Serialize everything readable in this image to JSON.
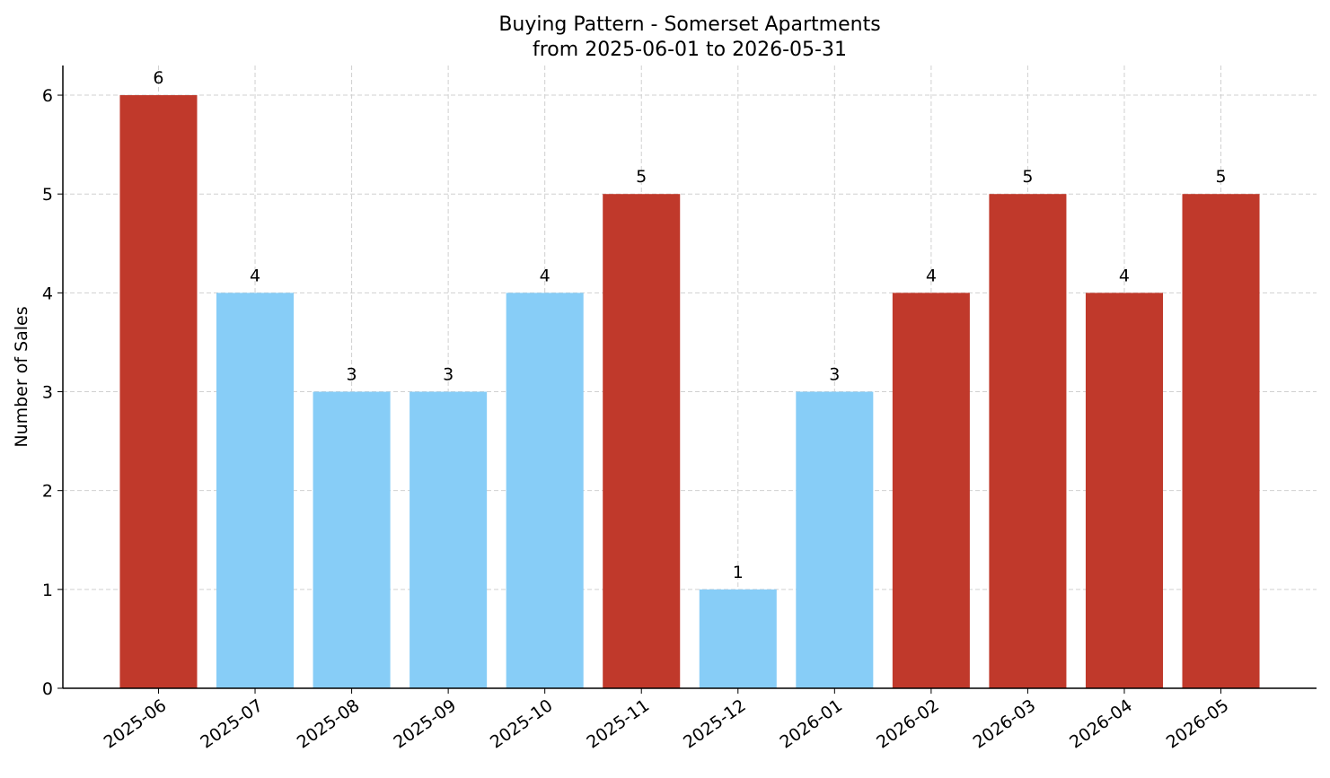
{
  "chart_data": {
    "type": "bar",
    "title": "Buying Pattern - Somerset Apartments",
    "subtitle": "from 2025-06-01 to 2026-05-31",
    "y_label": "Number of Sales",
    "categories": [
      "2025-06",
      "2025-07",
      "2025-08",
      "2025-09",
      "2025-10",
      "2025-11",
      "2025-12",
      "2026-01",
      "2026-02",
      "2026-03",
      "2026-04",
      "2026-05"
    ],
    "values": [
      6,
      4,
      3,
      3,
      4,
      5,
      1,
      3,
      4,
      5,
      4,
      5
    ],
    "colors": [
      "#c0392b",
      "#87cdf7",
      "#87cdf7",
      "#87cdf7",
      "#87cdf7",
      "#c0392b",
      "#87cdf7",
      "#87cdf7",
      "#c0392b",
      "#c0392b",
      "#c0392b",
      "#c0392b"
    ],
    "ylim": [
      0,
      6.3
    ],
    "yticks": [
      0,
      1,
      2,
      3,
      4,
      5,
      6
    ],
    "grid": true
  }
}
